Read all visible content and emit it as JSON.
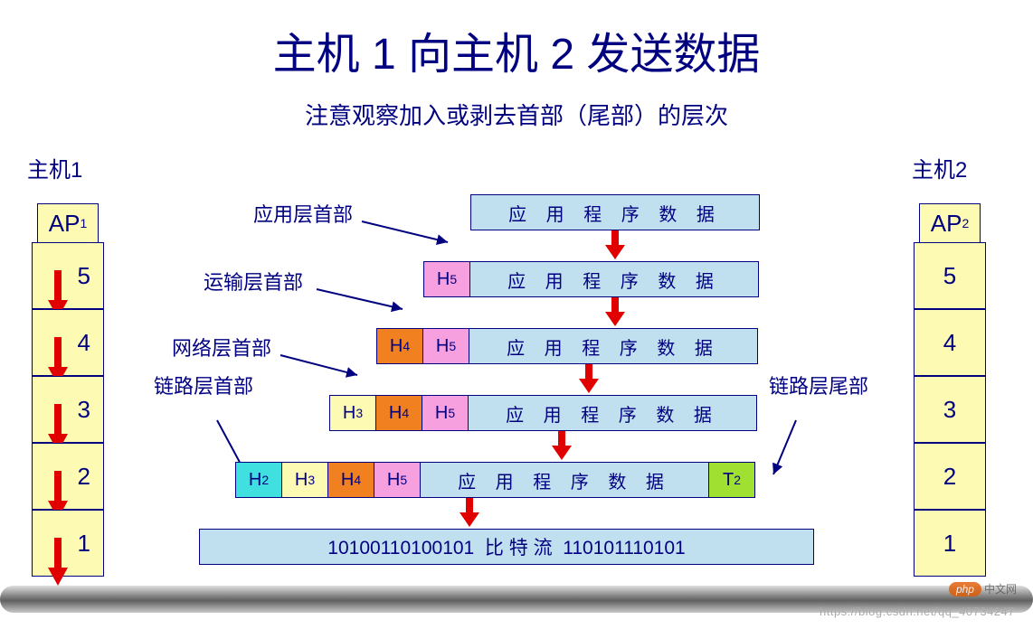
{
  "title": "主机 1 向主机 2 发送数据",
  "subtitle": "注意观察加入或剥去首部（尾部）的层次",
  "host1": {
    "label": "主机1",
    "ap": "AP",
    "ap_sub": "1",
    "layers": [
      "5",
      "4",
      "3",
      "2",
      "1"
    ]
  },
  "host2": {
    "label": "主机2",
    "ap": "AP",
    "ap_sub": "2",
    "layers": [
      "5",
      "4",
      "3",
      "2",
      "1"
    ]
  },
  "header_labels": {
    "app": "应用层首部",
    "trans": "运输层首部",
    "net": "网络层首部",
    "link_head": "链路层首部",
    "link_tail": "链路层尾部"
  },
  "payload": "应 用 程 序 数 据",
  "bitstream_left": "10100110100101",
  "bitstream_mid": "比  特  流",
  "bitstream_right": "110101110101",
  "headers": {
    "h5": {
      "text": "H",
      "sub": "5",
      "bg": "#f7a0e0"
    },
    "h4": {
      "text": "H",
      "sub": "4",
      "bg": "#f08020"
    },
    "h3": {
      "text": "H",
      "sub": "3",
      "bg": "#fdfab4"
    },
    "h2": {
      "text": "H",
      "sub": "2",
      "bg": "#40e0e0"
    },
    "t2": {
      "text": "T",
      "sub": "2",
      "bg": "#a0e030"
    }
  },
  "colors": {
    "payload_bg": "#c0e0f0",
    "border": "#000080",
    "arrow": "#e00000",
    "stack_bg": "#fdfab4"
  },
  "layout": {
    "seg_w_header": 52,
    "seg_w_payload": 320,
    "row_offsets": [
      340,
      288,
      236,
      184,
      80,
      40
    ],
    "bitstream_width": 680
  },
  "watermark": {
    "logo": "php",
    "logo_text": "中文网",
    "url": "https://blog.csdn.net/qq_40734247"
  }
}
